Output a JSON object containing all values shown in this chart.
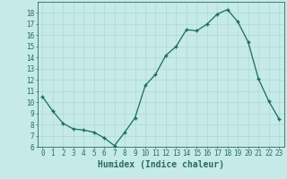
{
  "x": [
    0,
    1,
    2,
    3,
    4,
    5,
    6,
    7,
    8,
    9,
    10,
    11,
    12,
    13,
    14,
    15,
    16,
    17,
    18,
    19,
    20,
    21,
    22,
    23
  ],
  "y": [
    10.5,
    9.2,
    8.1,
    7.6,
    7.5,
    7.3,
    6.8,
    6.1,
    7.3,
    8.6,
    11.5,
    12.5,
    14.2,
    15.0,
    16.5,
    16.4,
    17.0,
    17.9,
    18.3,
    17.2,
    15.4,
    12.1,
    10.1,
    8.5
  ],
  "xlabel": "Humidex (Indice chaleur)",
  "xlim": [
    -0.5,
    23.5
  ],
  "ylim": [
    6,
    19
  ],
  "yticks": [
    6,
    7,
    8,
    9,
    10,
    11,
    12,
    13,
    14,
    15,
    16,
    17,
    18
  ],
  "xticks": [
    0,
    1,
    2,
    3,
    4,
    5,
    6,
    7,
    8,
    9,
    10,
    11,
    12,
    13,
    14,
    15,
    16,
    17,
    18,
    19,
    20,
    21,
    22,
    23
  ],
  "line_color": "#1a6b5a",
  "marker_color": "#1a6b5a",
  "bg_color": "#c5eae7",
  "grid_color": "#b0d8d4",
  "axis_color": "#2a6b5e",
  "tick_fontsize": 5.5,
  "xlabel_fontsize": 7.0
}
